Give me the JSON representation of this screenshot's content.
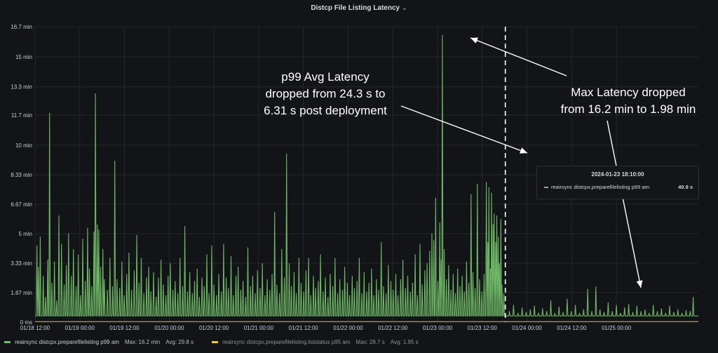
{
  "panel": {
    "title": "Distcp File Listing Latency",
    "chevron": "⌄"
  },
  "chart_data": {
    "type": "line",
    "title": "Distcp File Listing Latency",
    "xlabel": "",
    "ylabel": "",
    "y_unit": "minutes",
    "ylim": [
      0,
      16.7
    ],
    "yticks": [
      {
        "value": 0,
        "label": "0 ms"
      },
      {
        "value": 1.67,
        "label": "1.67 min"
      },
      {
        "value": 3.33,
        "label": "3.33 min"
      },
      {
        "value": 5,
        "label": "5 min"
      },
      {
        "value": 6.67,
        "label": "6.67 min"
      },
      {
        "value": 8.33,
        "label": "8.33 min"
      },
      {
        "value": 10,
        "label": "10 min"
      },
      {
        "value": 11.7,
        "label": "11.7 min"
      },
      {
        "value": 13.3,
        "label": "13.3 min"
      },
      {
        "value": 15,
        "label": "15 min"
      },
      {
        "value": 16.7,
        "label": "16.7 min"
      }
    ],
    "x_unit": "hours since 01/18 12:00",
    "xlim": [
      0,
      178
    ],
    "xticks": [
      {
        "value": 0,
        "label": "01/18 12:00"
      },
      {
        "value": 12,
        "label": "01/19 00:00"
      },
      {
        "value": 24,
        "label": "01/19 12:00"
      },
      {
        "value": 36,
        "label": "01/20 00:00"
      },
      {
        "value": 48,
        "label": "01/20 12:00"
      },
      {
        "value": 60,
        "label": "01/21 00:00"
      },
      {
        "value": 72,
        "label": "01/21 12:00"
      },
      {
        "value": 84,
        "label": "01/22 00:00"
      },
      {
        "value": 96,
        "label": "01/22 12:00"
      },
      {
        "value": 108,
        "label": "01/23 00:00"
      },
      {
        "value": 120,
        "label": "01/23 12:00"
      },
      {
        "value": 132,
        "label": "01/24 00:00"
      },
      {
        "value": 144,
        "label": "01/24 12:00"
      },
      {
        "value": 156,
        "label": "01/25 00:00"
      }
    ],
    "grid": true,
    "legend_position": "bottom-left",
    "deployment_marker_x": 126.2,
    "series": [
      {
        "name": "reairsync distcpx.preparefilelisting p99 am",
        "color": "#73bf69",
        "max_label": "Max: 16.2 min",
        "avg_label": "Avg: 29.8 s",
        "baseline": 0.35,
        "spikes": [
          [
            0.5,
            4.3
          ],
          [
            0.9,
            3.1
          ],
          [
            1.4,
            4.8
          ],
          [
            2.2,
            2.6
          ],
          [
            2.8,
            1.4
          ],
          [
            3.4,
            3.5
          ],
          [
            3.9,
            11.8
          ],
          [
            4.5,
            2.2
          ],
          [
            5.2,
            3.4
          ],
          [
            5.8,
            1.2
          ],
          [
            6.4,
            6.0
          ],
          [
            7.1,
            4.4
          ],
          [
            7.8,
            2.1
          ],
          [
            8.4,
            3.2
          ],
          [
            9.0,
            5.0
          ],
          [
            9.7,
            2.6
          ],
          [
            10.3,
            4.1
          ],
          [
            11.0,
            2.0
          ],
          [
            11.6,
            3.8
          ],
          [
            12.2,
            1.5
          ],
          [
            12.8,
            4.7
          ],
          [
            13.5,
            2.3
          ],
          [
            14.1,
            5.3
          ],
          [
            14.6,
            3.0
          ],
          [
            15.2,
            2.0
          ],
          [
            15.8,
            5.1
          ],
          [
            16.2,
            12.9
          ],
          [
            16.7,
            5.5
          ],
          [
            17.1,
            5.2
          ],
          [
            17.6,
            3.1
          ],
          [
            18.2,
            4.1
          ],
          [
            18.6,
            2.4
          ],
          [
            19.4,
            1.8
          ],
          [
            20.1,
            3.6
          ],
          [
            20.8,
            2.0
          ],
          [
            21.4,
            9.1
          ],
          [
            22.0,
            2.4
          ],
          [
            22.7,
            1.9
          ],
          [
            23.3,
            3.4
          ],
          [
            23.9,
            1.5
          ],
          [
            24.6,
            2.7
          ],
          [
            25.2,
            3.9
          ],
          [
            25.9,
            1.8
          ],
          [
            26.6,
            2.9
          ],
          [
            27.3,
            4.9
          ],
          [
            27.9,
            2.2
          ],
          [
            28.5,
            3.6
          ],
          [
            29.2,
            1.6
          ],
          [
            29.9,
            2.5
          ],
          [
            30.5,
            3.1
          ],
          [
            31.1,
            1.7
          ],
          [
            31.8,
            2.8
          ],
          [
            32.5,
            1.4
          ],
          [
            33.1,
            2.5
          ],
          [
            33.8,
            3.5
          ],
          [
            34.4,
            2.1
          ],
          [
            35.1,
            1.5
          ],
          [
            35.7,
            2.6
          ],
          [
            36.3,
            3.3
          ],
          [
            37.0,
            1.8
          ],
          [
            37.6,
            2.3
          ],
          [
            38.3,
            1.6
          ],
          [
            38.9,
            3.6
          ],
          [
            39.6,
            2.0
          ],
          [
            40.2,
            5.4
          ],
          [
            40.9,
            1.7
          ],
          [
            41.5,
            2.8
          ],
          [
            42.2,
            1.6
          ],
          [
            42.8,
            2.3
          ],
          [
            43.5,
            3.0
          ],
          [
            44.1,
            1.4
          ],
          [
            44.8,
            2.5
          ],
          [
            45.4,
            2.0
          ],
          [
            46.1,
            3.8
          ],
          [
            46.7,
            1.6
          ],
          [
            47.4,
            4.3
          ],
          [
            48.0,
            2.1
          ],
          [
            48.7,
            1.5
          ],
          [
            49.3,
            2.7
          ],
          [
            50.0,
            1.7
          ],
          [
            50.6,
            4.4
          ],
          [
            51.3,
            2.5
          ],
          [
            51.9,
            1.9
          ],
          [
            52.6,
            3.7
          ],
          [
            53.2,
            1.5
          ],
          [
            53.9,
            2.6
          ],
          [
            54.5,
            3.1
          ],
          [
            55.2,
            1.8
          ],
          [
            55.8,
            2.3
          ],
          [
            56.5,
            1.4
          ],
          [
            57.1,
            4.2
          ],
          [
            57.8,
            2.0
          ],
          [
            58.4,
            2.6
          ],
          [
            59.1,
            1.6
          ],
          [
            59.7,
            2.9
          ],
          [
            60.4,
            1.9
          ],
          [
            61.0,
            3.3
          ],
          [
            61.7,
            1.5
          ],
          [
            62.3,
            2.4
          ],
          [
            63.0,
            1.8
          ],
          [
            63.6,
            2.7
          ],
          [
            64.3,
            6.2
          ],
          [
            64.9,
            2.1
          ],
          [
            65.6,
            1.6
          ],
          [
            66.2,
            4.1
          ],
          [
            66.9,
            2.5
          ],
          [
            67.5,
            9.5
          ],
          [
            68.2,
            3.3
          ],
          [
            68.8,
            2.0
          ],
          [
            69.5,
            2.8
          ],
          [
            70.1,
            1.6
          ],
          [
            70.8,
            3.6
          ],
          [
            71.4,
            2.2
          ],
          [
            72.1,
            1.7
          ],
          [
            72.7,
            2.9
          ],
          [
            73.4,
            3.6
          ],
          [
            74.0,
            1.5
          ],
          [
            74.7,
            2.6
          ],
          [
            75.3,
            1.9
          ],
          [
            76.0,
            2.3
          ],
          [
            76.6,
            3.8
          ],
          [
            77.3,
            1.7
          ],
          [
            77.9,
            2.5
          ],
          [
            78.6,
            1.4
          ],
          [
            79.2,
            2.7
          ],
          [
            79.9,
            2.0
          ],
          [
            80.5,
            3.6
          ],
          [
            81.2,
            1.6
          ],
          [
            81.8,
            2.4
          ],
          [
            82.5,
            1.8
          ],
          [
            83.1,
            3.1
          ],
          [
            83.8,
            2.2
          ],
          [
            84.4,
            1.5
          ],
          [
            85.1,
            2.6
          ],
          [
            85.7,
            1.9
          ],
          [
            86.4,
            2.3
          ],
          [
            87.0,
            3.6
          ],
          [
            87.7,
            1.6
          ],
          [
            88.3,
            2.8
          ],
          [
            89.0,
            1.7
          ],
          [
            89.6,
            2.2
          ],
          [
            90.3,
            3.0
          ],
          [
            90.9,
            1.5
          ],
          [
            91.6,
            2.4
          ],
          [
            92.2,
            1.8
          ],
          [
            92.9,
            4.5
          ],
          [
            93.5,
            2.0
          ],
          [
            94.2,
            1.6
          ],
          [
            94.8,
            3.2
          ],
          [
            95.5,
            2.3
          ],
          [
            96.1,
            1.8
          ],
          [
            96.8,
            2.7
          ],
          [
            97.4,
            1.5
          ],
          [
            98.1,
            2.4
          ],
          [
            98.7,
            3.5
          ],
          [
            99.4,
            1.9
          ],
          [
            100.0,
            2.6
          ],
          [
            100.7,
            1.7
          ],
          [
            101.3,
            2.2
          ],
          [
            102.0,
            3.8
          ],
          [
            102.6,
            1.5
          ],
          [
            103.3,
            4.4
          ],
          [
            103.9,
            2.1
          ],
          [
            104.6,
            2.9
          ],
          [
            105.2,
            3.3
          ],
          [
            105.9,
            4.0
          ],
          [
            106.5,
            5.0
          ],
          [
            107.0,
            4.6
          ],
          [
            107.5,
            7.0
          ],
          [
            108.1,
            2.3
          ],
          [
            108.6,
            5.6
          ],
          [
            109.0,
            3.5
          ],
          [
            109.3,
            16.2
          ],
          [
            109.8,
            4.1
          ],
          [
            110.4,
            2.4
          ],
          [
            111.0,
            3.2
          ],
          [
            111.6,
            1.8
          ],
          [
            112.2,
            2.7
          ],
          [
            112.8,
            1.6
          ],
          [
            113.4,
            3.0
          ],
          [
            114.0,
            2.0
          ],
          [
            114.6,
            2.6
          ],
          [
            115.2,
            1.7
          ],
          [
            115.8,
            3.4
          ],
          [
            116.4,
            2.2
          ],
          [
            117.0,
            7.2
          ],
          [
            117.5,
            2.8
          ],
          [
            118.1,
            1.9
          ],
          [
            118.7,
            7.8
          ],
          [
            119.3,
            2.4
          ],
          [
            119.9,
            1.7
          ],
          [
            120.5,
            2.7
          ],
          [
            121.1,
            7.9
          ],
          [
            121.5,
            4.5
          ],
          [
            121.8,
            7.6
          ],
          [
            122.2,
            3.0
          ],
          [
            122.5,
            7.3
          ],
          [
            122.9,
            5.5
          ],
          [
            123.2,
            6.1
          ],
          [
            123.6,
            4.5
          ],
          [
            123.9,
            6.0
          ],
          [
            124.3,
            4.8
          ],
          [
            124.6,
            3.3
          ],
          [
            125.0,
            5.8
          ],
          [
            125.3,
            2.1
          ],
          [
            125.8,
            1.6
          ],
          [
            127.3,
            0.6
          ],
          [
            128.4,
            0.95
          ],
          [
            129.6,
            0.5
          ],
          [
            130.7,
            0.8
          ],
          [
            131.8,
            0.55
          ],
          [
            132.9,
            0.7
          ],
          [
            134.0,
            0.9
          ],
          [
            135.1,
            0.5
          ],
          [
            136.2,
            0.75
          ],
          [
            137.3,
            0.6
          ],
          [
            138.4,
            1.2
          ],
          [
            139.5,
            0.5
          ],
          [
            140.6,
            0.85
          ],
          [
            141.7,
            0.55
          ],
          [
            142.8,
            1.3
          ],
          [
            143.9,
            0.6
          ],
          [
            145.0,
            0.95
          ],
          [
            146.1,
            0.5
          ],
          [
            147.2,
            0.7
          ],
          [
            148.3,
            1.85
          ],
          [
            149.4,
            0.6
          ],
          [
            150.5,
            1.98
          ],
          [
            151.6,
            0.7
          ],
          [
            152.7,
            0.55
          ],
          [
            153.8,
            1.1
          ],
          [
            154.9,
            0.6
          ],
          [
            156.0,
            0.95
          ],
          [
            157.1,
            0.5
          ],
          [
            158.2,
            0.8
          ],
          [
            159.3,
            1.0
          ],
          [
            160.4,
            0.55
          ],
          [
            161.5,
            0.9
          ],
          [
            162.6,
            0.6
          ],
          [
            163.7,
            0.7
          ],
          [
            164.8,
            0.5
          ],
          [
            165.9,
            0.95
          ],
          [
            167.0,
            0.6
          ],
          [
            168.1,
            0.75
          ],
          [
            169.2,
            0.5
          ],
          [
            170.3,
            0.9
          ],
          [
            171.4,
            0.55
          ],
          [
            172.5,
            0.7
          ],
          [
            173.6,
            0.5
          ],
          [
            174.7,
            0.65
          ],
          [
            175.8,
            0.6
          ],
          [
            176.6,
            1.4
          ]
        ]
      },
      {
        "name": "reairsync distcpx.preparefilelisting.liststatus p95 am",
        "color": "#f2cc0c",
        "max_label": "Max: 28.7 s",
        "avg_label": "Avg: 1.95 s",
        "baseline": 0.03,
        "spikes": []
      }
    ],
    "annotations": [
      {
        "text": "p99 Avg Latency\ndropped from 24.3 s to\n6.31 s post deployment"
      },
      {
        "text": "Max Latency dropped\nfrom 16.2 min to 1.98 min"
      }
    ],
    "tooltip": {
      "time": "2024-01-23 18:10:00",
      "series_name": "reairsync distcpx.preparefilelisting p99 am:",
      "value": "40.9 s"
    }
  }
}
